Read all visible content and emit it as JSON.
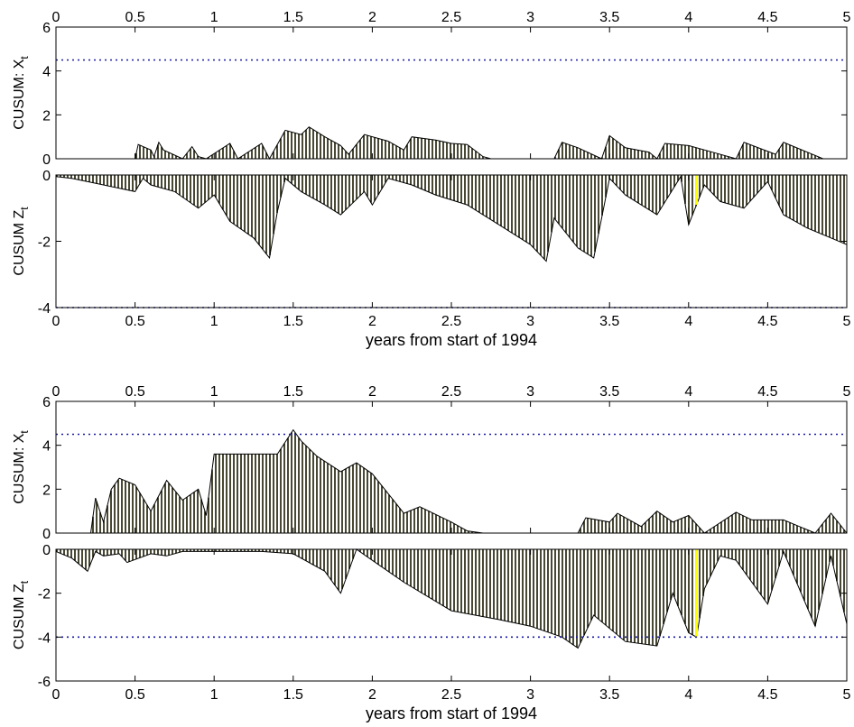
{
  "colors": {
    "axis": "#000000",
    "threshold": "#1a1aa6",
    "fill": "#1a1a00",
    "highlight": "#ffff00",
    "edge": "#000000"
  },
  "chart_data": [
    {
      "type": "area",
      "xlim": [
        0,
        5
      ],
      "ylim": [
        0,
        6
      ],
      "xticks": [
        "0",
        "0.5",
        "1",
        "1.5",
        "2",
        "2.5",
        "3",
        "3.5",
        "4",
        "4.5",
        "5"
      ],
      "yticks": [
        "0",
        "2",
        "4",
        "6"
      ],
      "ylabel": "CUSUM: X",
      "ylabel_sub": "t",
      "xlabel": "",
      "tick_labels_on": "top",
      "threshold": 4.5,
      "x": [
        0,
        0.5,
        0.52,
        0.6,
        0.62,
        0.65,
        0.68,
        0.8,
        0.86,
        0.9,
        0.95,
        1.1,
        1.15,
        1.3,
        1.35,
        1.45,
        1.55,
        1.6,
        1.7,
        1.8,
        1.85,
        1.95,
        2.1,
        2.2,
        2.25,
        2.4,
        2.5,
        2.6,
        2.7,
        2.75,
        3.15,
        3.2,
        3.3,
        3.45,
        3.5,
        3.6,
        3.75,
        3.8,
        3.85,
        4.0,
        4.15,
        4.3,
        4.35,
        4.55,
        4.6,
        4.75,
        4.85,
        5.0
      ],
      "values": [
        0,
        0,
        0.65,
        0.4,
        0.1,
        0.75,
        0.4,
        0,
        0.55,
        0.1,
        0,
        0.7,
        0,
        0.7,
        0,
        1.3,
        1.1,
        1.45,
        1.0,
        0.6,
        0.2,
        1.1,
        0.8,
        0.4,
        1.0,
        0.85,
        0.7,
        0.65,
        0.1,
        0,
        0,
        0.75,
        0.5,
        0,
        1.05,
        0.5,
        0.3,
        0,
        0.7,
        0.6,
        0.3,
        0,
        0.75,
        0.2,
        0.75,
        0.3,
        0,
        0
      ],
      "highlight_at": []
    },
    {
      "type": "area",
      "xlim": [
        0,
        5
      ],
      "ylim": [
        -4,
        0
      ],
      "xticks": [
        "0",
        "0.5",
        "1",
        "1.5",
        "2",
        "2.5",
        "3",
        "3.5",
        "4",
        "4.5",
        "5"
      ],
      "yticks": [
        "-4",
        "-2",
        "0"
      ],
      "ylabel": "CUSUM Z",
      "ylabel_sub": "t",
      "xlabel": "years from start of 1994",
      "tick_labels_on": "bottom",
      "threshold": -4,
      "x": [
        0,
        0.1,
        0.3,
        0.5,
        0.55,
        0.6,
        0.75,
        0.9,
        1.0,
        1.1,
        1.25,
        1.35,
        1.4,
        1.45,
        1.55,
        1.7,
        1.8,
        1.95,
        2.0,
        2.1,
        2.25,
        2.4,
        2.6,
        2.8,
        3.0,
        3.1,
        3.15,
        3.3,
        3.4,
        3.5,
        3.6,
        3.8,
        3.95,
        4.0,
        4.1,
        4.2,
        4.35,
        4.5,
        4.6,
        4.75,
        4.9,
        5.0
      ],
      "values": [
        -0.05,
        -0.1,
        -0.3,
        -0.5,
        -0.1,
        -0.3,
        -0.5,
        -1.0,
        -0.6,
        -1.4,
        -1.9,
        -2.5,
        -1.1,
        -0.1,
        -0.5,
        -0.9,
        -1.2,
        -0.5,
        -0.9,
        -0.1,
        -0.3,
        -0.6,
        -0.9,
        -1.5,
        -2.1,
        -2.6,
        -1.3,
        -2.2,
        -2.5,
        -0.1,
        -0.6,
        -1.2,
        -0.05,
        -1.5,
        -0.3,
        -0.8,
        -1.0,
        -0.2,
        -1.2,
        -1.6,
        -1.9,
        -2.1
      ],
      "highlight_at": [
        4.05
      ]
    },
    {
      "type": "area",
      "xlim": [
        0,
        5
      ],
      "ylim": [
        0,
        6
      ],
      "xticks": [
        "0",
        "0.5",
        "1",
        "1.5",
        "2",
        "2.5",
        "3",
        "3.5",
        "4",
        "4.5",
        "5"
      ],
      "yticks": [
        "0",
        "2",
        "4",
        "6"
      ],
      "ylabel": "CUSUM: X",
      "ylabel_sub": "t",
      "xlabel": "",
      "tick_labels_on": "top",
      "threshold": 4.5,
      "x": [
        0,
        0.22,
        0.25,
        0.3,
        0.35,
        0.4,
        0.5,
        0.6,
        0.7,
        0.8,
        0.9,
        0.95,
        1.0,
        1.4,
        1.5,
        1.55,
        1.65,
        1.8,
        1.9,
        2.0,
        2.1,
        2.2,
        2.3,
        2.5,
        2.6,
        2.7,
        2.8,
        3.3,
        3.35,
        3.5,
        3.55,
        3.7,
        3.8,
        3.9,
        4.0,
        4.1,
        4.3,
        4.4,
        4.6,
        4.7,
        4.8,
        4.9,
        5.0
      ],
      "values": [
        0,
        0,
        1.6,
        0.5,
        2.0,
        2.5,
        2.2,
        1.0,
        2.4,
        1.5,
        2.0,
        0.8,
        3.6,
        3.6,
        4.7,
        4.2,
        3.5,
        2.8,
        3.2,
        2.7,
        1.8,
        0.9,
        1.2,
        0.5,
        0.1,
        0,
        0,
        0,
        0.7,
        0.5,
        0.9,
        0.3,
        1.0,
        0.5,
        0.8,
        0,
        0.95,
        0.6,
        0.6,
        0.3,
        0,
        0.9,
        0
      ]
    },
    {
      "type": "area",
      "xlim": [
        0,
        5
      ],
      "ylim": [
        -6,
        0
      ],
      "xticks": [
        "0",
        "0.5",
        "1",
        "1.5",
        "2",
        "2.5",
        "3",
        "3.5",
        "4",
        "4.5",
        "5"
      ],
      "yticks": [
        "-6",
        "-4",
        "-2",
        "0"
      ],
      "ylabel": "CUSUM Z",
      "ylabel_sub": "t",
      "xlabel": "years from start of 1994",
      "tick_labels_on": "bottom",
      "threshold": -4,
      "x": [
        0,
        0.1,
        0.2,
        0.25,
        0.3,
        0.4,
        0.45,
        0.6,
        0.7,
        0.8,
        0.9,
        1.0,
        1.3,
        1.5,
        1.7,
        1.8,
        1.9,
        2.0,
        2.2,
        2.5,
        2.8,
        3.0,
        3.2,
        3.3,
        3.4,
        3.6,
        3.8,
        3.9,
        4.0,
        4.05,
        4.1,
        4.2,
        4.3,
        4.5,
        4.6,
        4.8,
        4.9,
        5.0
      ],
      "values": [
        -0.1,
        -0.4,
        -1.0,
        -0.1,
        -0.3,
        -0.2,
        -0.6,
        -0.2,
        -0.3,
        -0.1,
        -0.1,
        -0.1,
        -0.1,
        -0.2,
        -1.0,
        -2.0,
        0,
        -0.5,
        -1.5,
        -2.8,
        -3.2,
        -3.5,
        -4.0,
        -4.5,
        -3.0,
        -4.2,
        -4.4,
        -2.0,
        -3.8,
        -4.0,
        -1.8,
        -0.3,
        -0.5,
        -2.5,
        -0.1,
        -3.5,
        -0.3,
        -3.4
      ],
      "highlight_at": [
        4.05
      ]
    }
  ]
}
